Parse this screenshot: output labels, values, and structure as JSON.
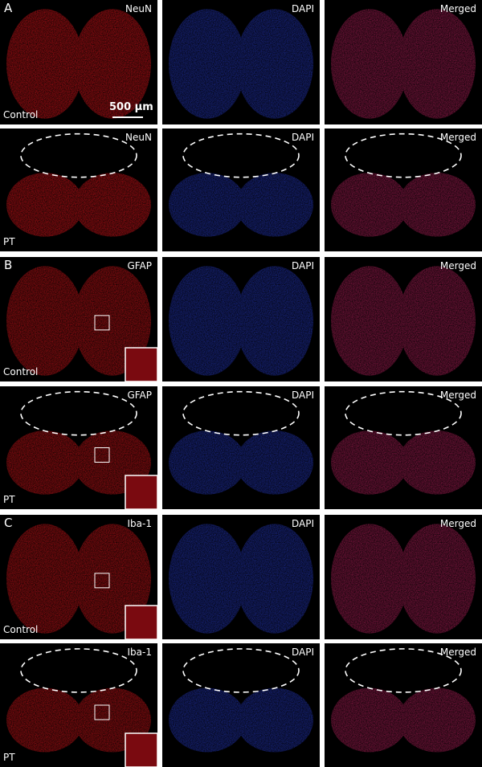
{
  "scale_bar": "500 μm",
  "sections": [
    {
      "letter": "A",
      "rows": [
        {
          "condition": "Control",
          "stains": [
            "NeuN",
            "DAPI",
            "Merged"
          ]
        },
        {
          "condition": "PT",
          "stains": [
            "NeuN",
            "DAPI",
            "Merged"
          ]
        }
      ]
    },
    {
      "letter": "B",
      "rows": [
        {
          "condition": "Control",
          "stains": [
            "GFAP",
            "DAPI",
            "Merged"
          ]
        },
        {
          "condition": "PT",
          "stains": [
            "GFAP",
            "DAPI",
            "Merged"
          ]
        }
      ]
    },
    {
      "letter": "C",
      "rows": [
        {
          "condition": "Control",
          "stains": [
            "Iba-1",
            "DAPI",
            "Merged"
          ]
        },
        {
          "condition": "PT",
          "stains": [
            "Iba-1",
            "DAPI",
            "Merged"
          ]
        }
      ]
    }
  ]
}
